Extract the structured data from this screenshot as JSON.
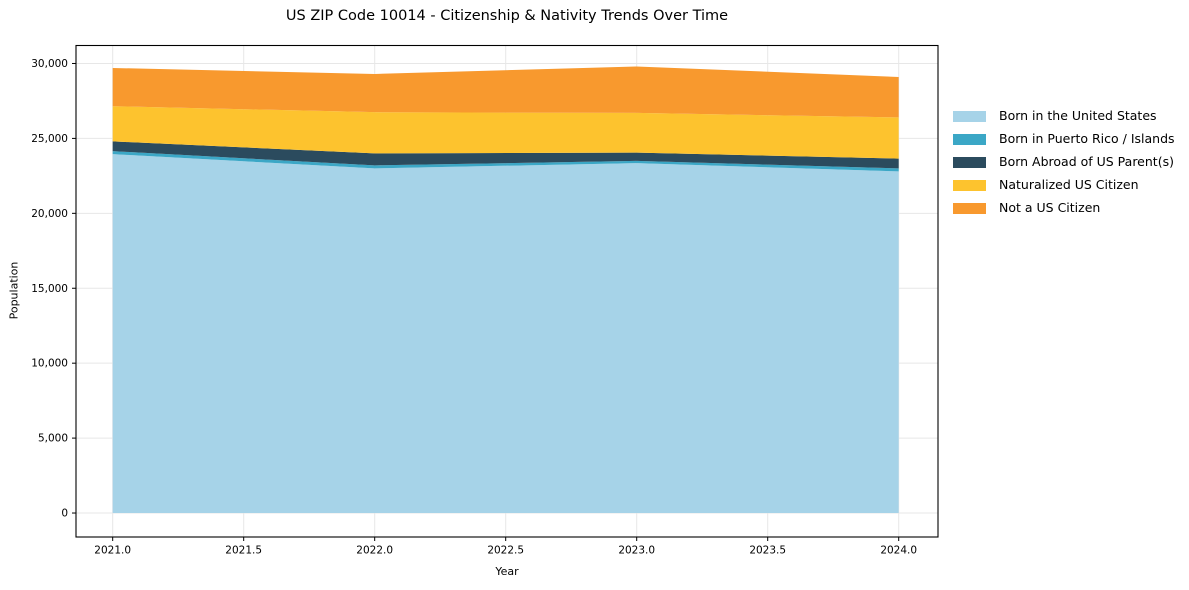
{
  "title": "US ZIP Code 10014 - Citizenship & Nativity Trends Over Time",
  "chart_data": {
    "type": "area",
    "stacked": true,
    "title": "US ZIP Code 10014 - Citizenship & Nativity Trends Over Time",
    "xlabel": "Year",
    "ylabel": "Population",
    "x": [
      2021,
      2022,
      2023,
      2024
    ],
    "series": [
      {
        "name": "Born in the United States",
        "color": "#a6d3e8",
        "values": [
          23950,
          23000,
          23350,
          22800
        ]
      },
      {
        "name": "Born in Puerto Rico / Islands",
        "color": "#3ba7c6",
        "values": [
          200,
          200,
          150,
          200
        ]
      },
      {
        "name": "Born Abroad of US Parent(s)",
        "color": "#2b4b5e",
        "values": [
          650,
          800,
          550,
          650
        ]
      },
      {
        "name": "Naturalized US Citizen",
        "color": "#fdc32e",
        "values": [
          2350,
          2750,
          2650,
          2750
        ]
      },
      {
        "name": "Not a US Citizen",
        "color": "#f8992e",
        "values": [
          2550,
          2550,
          3100,
          2700
        ]
      }
    ],
    "stack_totals": [
      29700,
      29300,
      29800,
      29100
    ],
    "xticks": {
      "values": [
        2021.0,
        2021.5,
        2022.0,
        2022.5,
        2023.0,
        2023.5,
        2024.0
      ],
      "labels": [
        "2021.0",
        "2021.5",
        "2022.0",
        "2022.5",
        "2023.0",
        "2023.5",
        "2024.0"
      ]
    },
    "yticks": {
      "values": [
        0,
        5000,
        10000,
        15000,
        20000,
        25000,
        30000
      ],
      "labels": [
        "0",
        "5,000",
        "10,000",
        "15,000",
        "20,000",
        "25,000",
        "30,000"
      ]
    },
    "xlim": [
      2020.86,
      2024.15
    ],
    "ylim": [
      -1600,
      31200
    ],
    "grid": true,
    "grid_color": "#e7e7e7",
    "spine_color": "#000000",
    "legend_position": "right"
  }
}
